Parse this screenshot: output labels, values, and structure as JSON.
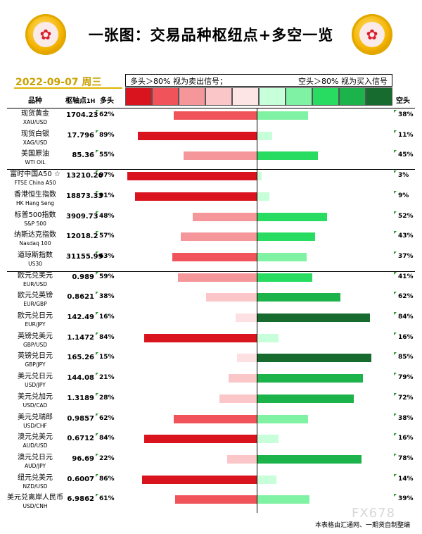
{
  "header": {
    "title": "一张图：交易品种枢纽点+多空一览",
    "date": "2022-09-07 周三",
    "left_signal": "多头＞80% 视为卖出信号；",
    "right_signal": "空头＞80% 视为买入信号",
    "col_symbol": "品种",
    "col_pivot": "枢轴点",
    "col_pivot_unit": "1H",
    "col_long": "多头",
    "col_short": "空头"
  },
  "legend_colors": [
    "#d9141f",
    "#f0545a",
    "#f5969a",
    "#fbc6c8",
    "#fde5e6",
    "#c6ffd9",
    "#80f2a4",
    "#27dc60",
    "#1bb34a",
    "#176b2f"
  ],
  "colors": {
    "long_scale": [
      "#fde0e1",
      "#fbc6c8",
      "#f5969a",
      "#f0545a",
      "#d9141f"
    ],
    "short_scale": [
      "#c6ffd9",
      "#80f2a4",
      "#27dc60",
      "#1bb34a",
      "#176b2f"
    ]
  },
  "chart_data": {
    "type": "bar",
    "title": "一张图：交易品种枢纽点+多空一览",
    "orientation": "horizontal-diverging",
    "xlim": [
      -100,
      100
    ],
    "categories": [
      "现货黄金",
      "现货白银",
      "美国原油",
      "富时中国A50 ☆",
      "香港恒生指数",
      "标普500指数",
      "纳斯达克指数",
      "道琼斯指数",
      "欧元兑美元",
      "欧元兑英镑",
      "欧元兑日元",
      "英镑兑美元",
      "英镑兑日元",
      "美元兑日元",
      "美元兑加元",
      "美元兑瑞郎",
      "澳元兑美元",
      "澳元兑日元",
      "纽元兑美元",
      "美元兑离岸人民币"
    ],
    "series": [
      {
        "name": "多头",
        "values": [
          62,
          89,
          55,
          97,
          91,
          48,
          57,
          63,
          59,
          38,
          16,
          84,
          15,
          21,
          28,
          62,
          84,
          22,
          86,
          61
        ]
      },
      {
        "name": "空头",
        "values": [
          38,
          11,
          45,
          3,
          9,
          52,
          43,
          37,
          41,
          62,
          84,
          16,
          85,
          79,
          72,
          38,
          16,
          78,
          14,
          39
        ]
      }
    ]
  },
  "rows": [
    {
      "name": "现货黄金",
      "sub": "XAU/USD",
      "pivot": "1704.23",
      "long": "62%",
      "short": "38%"
    },
    {
      "name": "现货白银",
      "sub": "XAG/USD",
      "pivot": "17.796",
      "long": "89%",
      "short": "11%"
    },
    {
      "name": "美国原油",
      "sub": "WTI OIL",
      "pivot": "85.36",
      "long": "55%",
      "short": "45%"
    },
    {
      "name": "富时中国A50 ☆",
      "sub": "FTSE China A50",
      "pivot": "13210.26",
      "long": "97%",
      "short": "3%"
    },
    {
      "name": "香港恒生指数",
      "sub": "HK Hang Seng",
      "pivot": "18873.33",
      "long": "91%",
      "short": "9%"
    },
    {
      "name": "标普500指数",
      "sub": "S&P 500",
      "pivot": "3909.73",
      "long": "48%",
      "short": "52%"
    },
    {
      "name": "纳斯达克指数",
      "sub": "Nasdaq 100",
      "pivot": "12018.2",
      "long": "57%",
      "short": "43%"
    },
    {
      "name": "道琼斯指数",
      "sub": "US30",
      "pivot": "31155.99",
      "long": "63%",
      "short": "37%"
    },
    {
      "name": "欧元兑美元",
      "sub": "EUR/USD",
      "pivot": "0.989",
      "long": "59%",
      "short": "41%"
    },
    {
      "name": "欧元兑英镑",
      "sub": "EUR/GBP",
      "pivot": "0.8621",
      "long": "38%",
      "short": "62%"
    },
    {
      "name": "欧元兑日元",
      "sub": "EUR/JPY",
      "pivot": "142.49",
      "long": "16%",
      "short": "84%"
    },
    {
      "name": "英镑兑美元",
      "sub": "GBP/USD",
      "pivot": "1.1472",
      "long": "84%",
      "short": "16%"
    },
    {
      "name": "英镑兑日元",
      "sub": "GBP/JPY",
      "pivot": "165.26",
      "long": "15%",
      "short": "85%"
    },
    {
      "name": "美元兑日元",
      "sub": "USD/JPY",
      "pivot": "144.08",
      "long": "21%",
      "short": "79%"
    },
    {
      "name": "美元兑加元",
      "sub": "USD/CAD",
      "pivot": "1.3189",
      "long": "28%",
      "short": "72%"
    },
    {
      "name": "美元兑瑞郎",
      "sub": "USD/CHF",
      "pivot": "0.9857",
      "long": "62%",
      "short": "38%"
    },
    {
      "name": "澳元兑美元",
      "sub": "AUD/USD",
      "pivot": "0.6712",
      "long": "84%",
      "short": "16%"
    },
    {
      "name": "澳元兑日元",
      "sub": "AUD/JPY",
      "pivot": "96.69",
      "long": "22%",
      "short": "78%"
    },
    {
      "name": "纽元兑美元",
      "sub": "NZD/USD",
      "pivot": "0.6007",
      "long": "86%",
      "short": "14%"
    },
    {
      "name": "美元兑离岸人民币",
      "sub": "USD/CNH",
      "pivot": "6.9862",
      "long": "61%",
      "short": "39%"
    }
  ],
  "footer": "本表格由汇通网、一期货自制整编",
  "watermark": "FX678"
}
